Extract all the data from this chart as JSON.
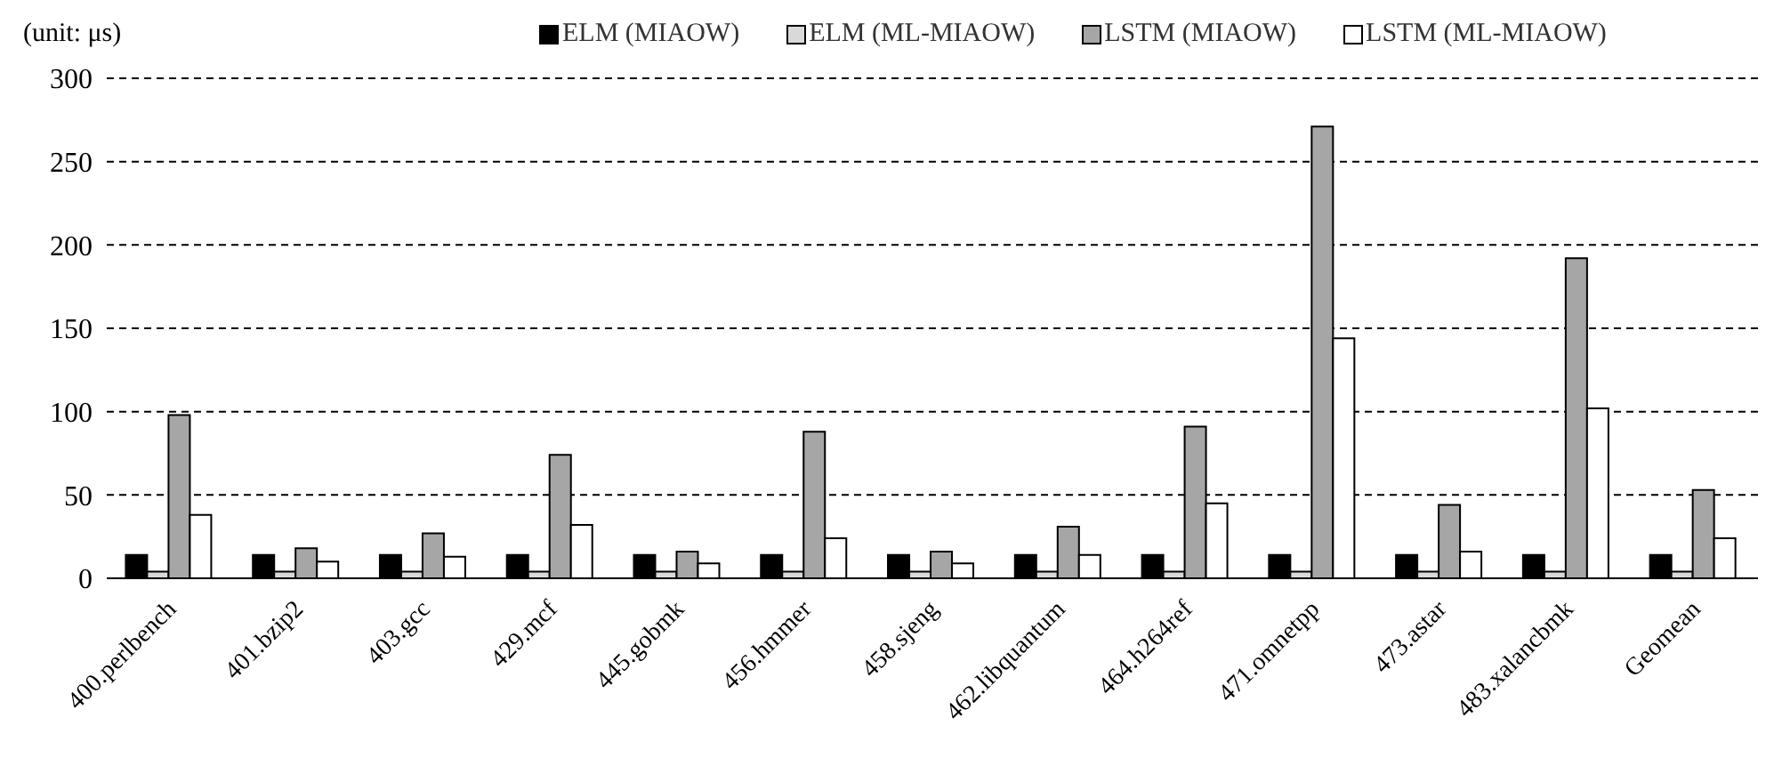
{
  "chart_data": {
    "type": "bar",
    "ylabel": "(unit: μs)",
    "categories": [
      "400.perlbench",
      "401.bzip2",
      "403.gcc",
      "429.mcf",
      "445.gobmk",
      "456.hmmer",
      "458.sjeng",
      "462.libquantum",
      "464.h264ref",
      "471.omnetpp",
      "473.astar",
      "483.xalancbmk",
      "Geomean"
    ],
    "series": [
      {
        "name": "ELM (MIAOW)",
        "color": "#000000",
        "values": [
          14,
          14,
          14,
          14,
          14,
          14,
          14,
          14,
          14,
          14,
          14,
          14,
          14
        ]
      },
      {
        "name": "ELM (ML-MIAOW)",
        "color": "#d9d9d9",
        "values": [
          4,
          4,
          4,
          4,
          4,
          4,
          4,
          4,
          4,
          4,
          4,
          4,
          4
        ]
      },
      {
        "name": "LSTM (MIAOW)",
        "color": "#a6a6a6",
        "values": [
          98,
          18,
          27,
          74,
          16,
          88,
          16,
          31,
          91,
          271,
          44,
          192,
          53
        ]
      },
      {
        "name": "LSTM (ML-MIAOW)",
        "color": "#ffffff",
        "values": [
          38,
          10,
          13,
          32,
          9,
          24,
          9,
          14,
          45,
          144,
          16,
          102,
          24
        ]
      }
    ],
    "ylim": [
      0,
      300
    ],
    "yticks": [
      0,
      50,
      100,
      150,
      200,
      250,
      300
    ],
    "grid": "y",
    "legend": "top"
  }
}
